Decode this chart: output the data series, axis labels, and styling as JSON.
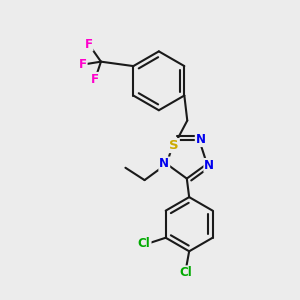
{
  "bg_color": "#ececec",
  "bond_color": "#1a1a1a",
  "N_color": "#0000ee",
  "S_color": "#ccaa00",
  "F_color": "#ff00cc",
  "Cl_color": "#00aa00",
  "line_width": 1.5,
  "figsize": [
    3.0,
    3.0
  ],
  "dpi": 100,
  "xlim": [
    0,
    10
  ],
  "ylim": [
    0,
    10
  ]
}
